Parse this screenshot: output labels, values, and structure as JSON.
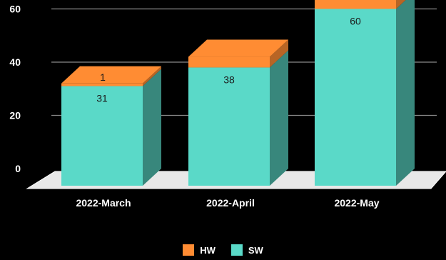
{
  "chart_data": {
    "type": "bar",
    "stacked": true,
    "three_d": true,
    "categories": [
      "2022-March",
      "2022-April",
      "2022-May"
    ],
    "series": [
      {
        "name": "SW",
        "values": [
          31,
          38,
          60
        ],
        "color": "#5ad9c8"
      },
      {
        "name": "HW",
        "values": [
          1,
          4,
          4
        ],
        "color": "#ff8c33"
      }
    ],
    "data_labels": {
      "SW": [
        "31",
        "38",
        "60"
      ],
      "HW": [
        "1",
        "",
        ""
      ]
    },
    "y_ticks": [
      0,
      20,
      40,
      60
    ],
    "ylim": [
      0,
      60
    ],
    "grid": true,
    "legend": "bottom-center",
    "title": "",
    "xlabel": "",
    "ylabel": ""
  },
  "legend": {
    "items": [
      {
        "label": "HW",
        "color": "#ff8c33"
      },
      {
        "label": "SW",
        "color": "#5ad9c8"
      }
    ]
  }
}
